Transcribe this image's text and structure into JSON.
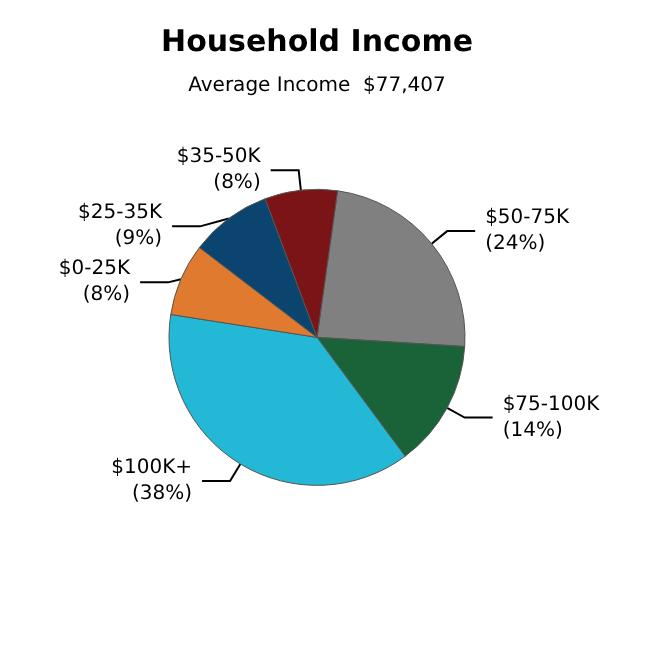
{
  "chart_data": {
    "type": "pie",
    "title": "Household Income",
    "subtitle": "Average Income  $77,407",
    "categories": [
      "$50-75K",
      "$75-100K",
      "$100K+",
      "$0-25K",
      "$25-35K",
      "$35-50K"
    ],
    "values": [
      24,
      14,
      38,
      8,
      9,
      8
    ],
    "value_labels": [
      "(24%)",
      "(14%)",
      "(38%)",
      "(8%)",
      "(9%)",
      "(8%)"
    ],
    "colors": [
      "#808080",
      "#1a6338",
      "#22b8d6",
      "#e07a2e",
      "#0c4470",
      "#7a1416"
    ],
    "legend": false
  }
}
